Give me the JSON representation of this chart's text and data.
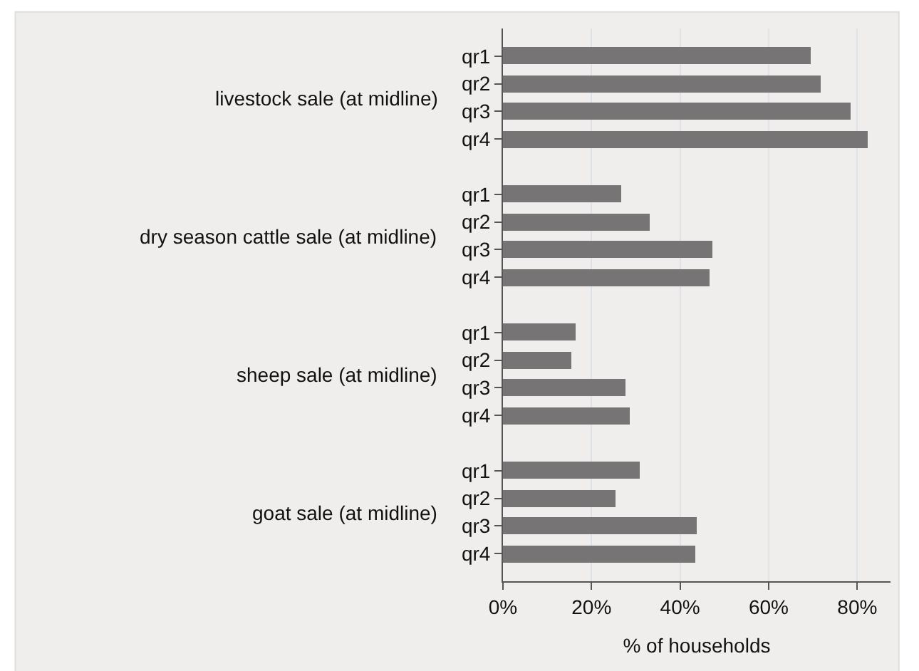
{
  "chart_data": {
    "type": "bar",
    "orientation": "horizontal",
    "xlabel": "% of households",
    "categories": [
      "qr1",
      "qr2",
      "qr3",
      "qr4",
      "qr1",
      "qr2",
      "qr3",
      "qr4",
      "qr1",
      "qr2",
      "qr3",
      "qr4",
      "qr1",
      "qr2",
      "qr3",
      "qr4"
    ],
    "values": [
      69.4,
      71.8,
      78.4,
      82.5,
      26.6,
      33.1,
      47.4,
      46.6,
      16.3,
      15.4,
      27.6,
      28.5,
      31.0,
      25.4,
      43.9,
      43.3
    ],
    "color": "#767474",
    "annotations": [
      "livestock sale (at midline)",
      "dry season cattle sale (at midline)",
      "sheep sale (at midline)",
      "goat sale (at midline)"
    ],
    "xlim": [
      0,
      87.5
    ],
    "xticks": [
      {
        "value": 0,
        "label": "0%"
      },
      {
        "value": 20,
        "label": "20%"
      },
      {
        "value": 40,
        "label": "40%"
      },
      {
        "value": 60,
        "label": "60%"
      },
      {
        "value": 80,
        "label": "80%"
      }
    ],
    "grid": "x",
    "legend": false
  }
}
